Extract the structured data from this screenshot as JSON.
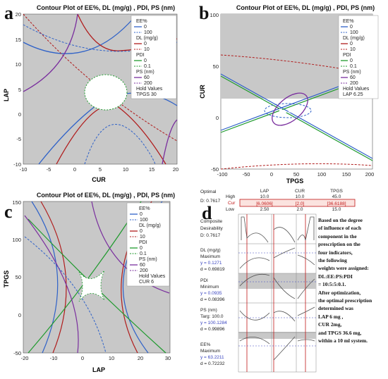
{
  "panel_labels": {
    "a": "a",
    "b": "b",
    "c": "c",
    "d": "d"
  },
  "legend_common": {
    "ee_title": "EE%",
    "ee_lo": "0",
    "ee_hi": "100",
    "dl_title": "DL  (mg/g)",
    "dl_lo": "0",
    "dl_hi": "10",
    "pdi_title": "PDI",
    "pdi_lo": "0",
    "pdi_hi": "0.1",
    "ps_title": "PS  (nm)",
    "ps_lo": "60",
    "ps_hi": "200",
    "hold": "Hold Values"
  },
  "colors": {
    "ee": "#2f62c8",
    "dl": "#b01c1c",
    "pdi": "#1f9a2e",
    "ps": "#7a2f9e",
    "bg": "#c8c8c8"
  },
  "chart_data": [
    {
      "type": "contour",
      "title": "Contour Plot of EE%, DL  (mg/g)  , PDI, PS  (nm)",
      "xlabel": "CUR",
      "ylabel": "LAP",
      "xlim": [
        -10,
        20
      ],
      "ylim": [
        -10,
        20
      ],
      "xticks": [
        "-10",
        "-5",
        "0",
        "5",
        "10",
        "15",
        "20"
      ],
      "yticks": [
        "-10",
        "-5",
        "0",
        "5",
        "10",
        "15",
        "20"
      ],
      "hold": "TPGS  30"
    },
    {
      "type": "contour",
      "title": "Contour Plot of EE%, DL  (mg/g)  , PDI, PS  (nm)",
      "xlabel": "TPGS",
      "ylabel": "CUR",
      "xlim": [
        -100,
        200
      ],
      "ylim": [
        -50,
        100
      ],
      "xticks": [
        "-100",
        "-50",
        "0",
        "50",
        "100",
        "150",
        "200"
      ],
      "yticks": [
        "-50",
        "0",
        "50",
        "100"
      ],
      "hold": "LAP  6.25"
    },
    {
      "type": "contour",
      "title": "Contour Plot of EE%, DL  (mg/g)  , PDI, PS  (nm)",
      "xlabel": "LAP",
      "ylabel": "TPGS",
      "xlim": [
        -20,
        30
      ],
      "ylim": [
        -50,
        150
      ],
      "xticks": [
        "-20",
        "-10",
        "0",
        "10",
        "20",
        "30"
      ],
      "yticks": [
        "-50",
        "0",
        "50",
        "100",
        "150"
      ],
      "hold": "CUR  6"
    }
  ],
  "optimizer": {
    "optimal": "Optimal",
    "d_value": "D: 0.7617",
    "high": "High",
    "cur": "Cur",
    "low": "Low",
    "columns": [
      "LAP",
      "CUR",
      "TPGS"
    ],
    "high_vals": [
      "10.0",
      "10.0",
      "45.0"
    ],
    "cur_vals": [
      "[6.0606]",
      "[2.0]",
      "[36.6188]"
    ],
    "low_vals": [
      "2.50",
      "2.0",
      "15.0"
    ],
    "rows": [
      {
        "l1": "Composite",
        "l2": "Desirability",
        "l3": "D: 0.7617",
        "l4": ""
      },
      {
        "l1": "DL  (mg/g)",
        "l2": "Maximum",
        "l3": "y = 0.1271",
        "l4": "d = 0.69819"
      },
      {
        "l1": "PDI",
        "l2": "Minimum",
        "l3": "y = 0.0935",
        "l4": "d = 0.08396"
      },
      {
        "l1": "PS  (nm)",
        "l2": "Targ: 100.0",
        "l3": "y = 100.1284",
        "l4": "d = 0.99896"
      },
      {
        "l1": "EE%",
        "l2": "Maximum",
        "l3": "y = 63.2211",
        "l4": "d = 0.72232"
      }
    ]
  },
  "note": {
    "lines": [
      "Based on the degree",
      "of influence of each",
      "component in the",
      "prescription on the",
      "four indicators,",
      "the following",
      "weights were assigned:",
      "DL:EE:PS:PDI",
      "= 10:5:5:0.1.",
      "After optimization,",
      "the optimal prescription",
      "determined was",
      "LAP 6 mg ,",
      "CUR 2mg,",
      "and TPGS 36.6 mg,",
      "within a 10 ml system."
    ]
  }
}
